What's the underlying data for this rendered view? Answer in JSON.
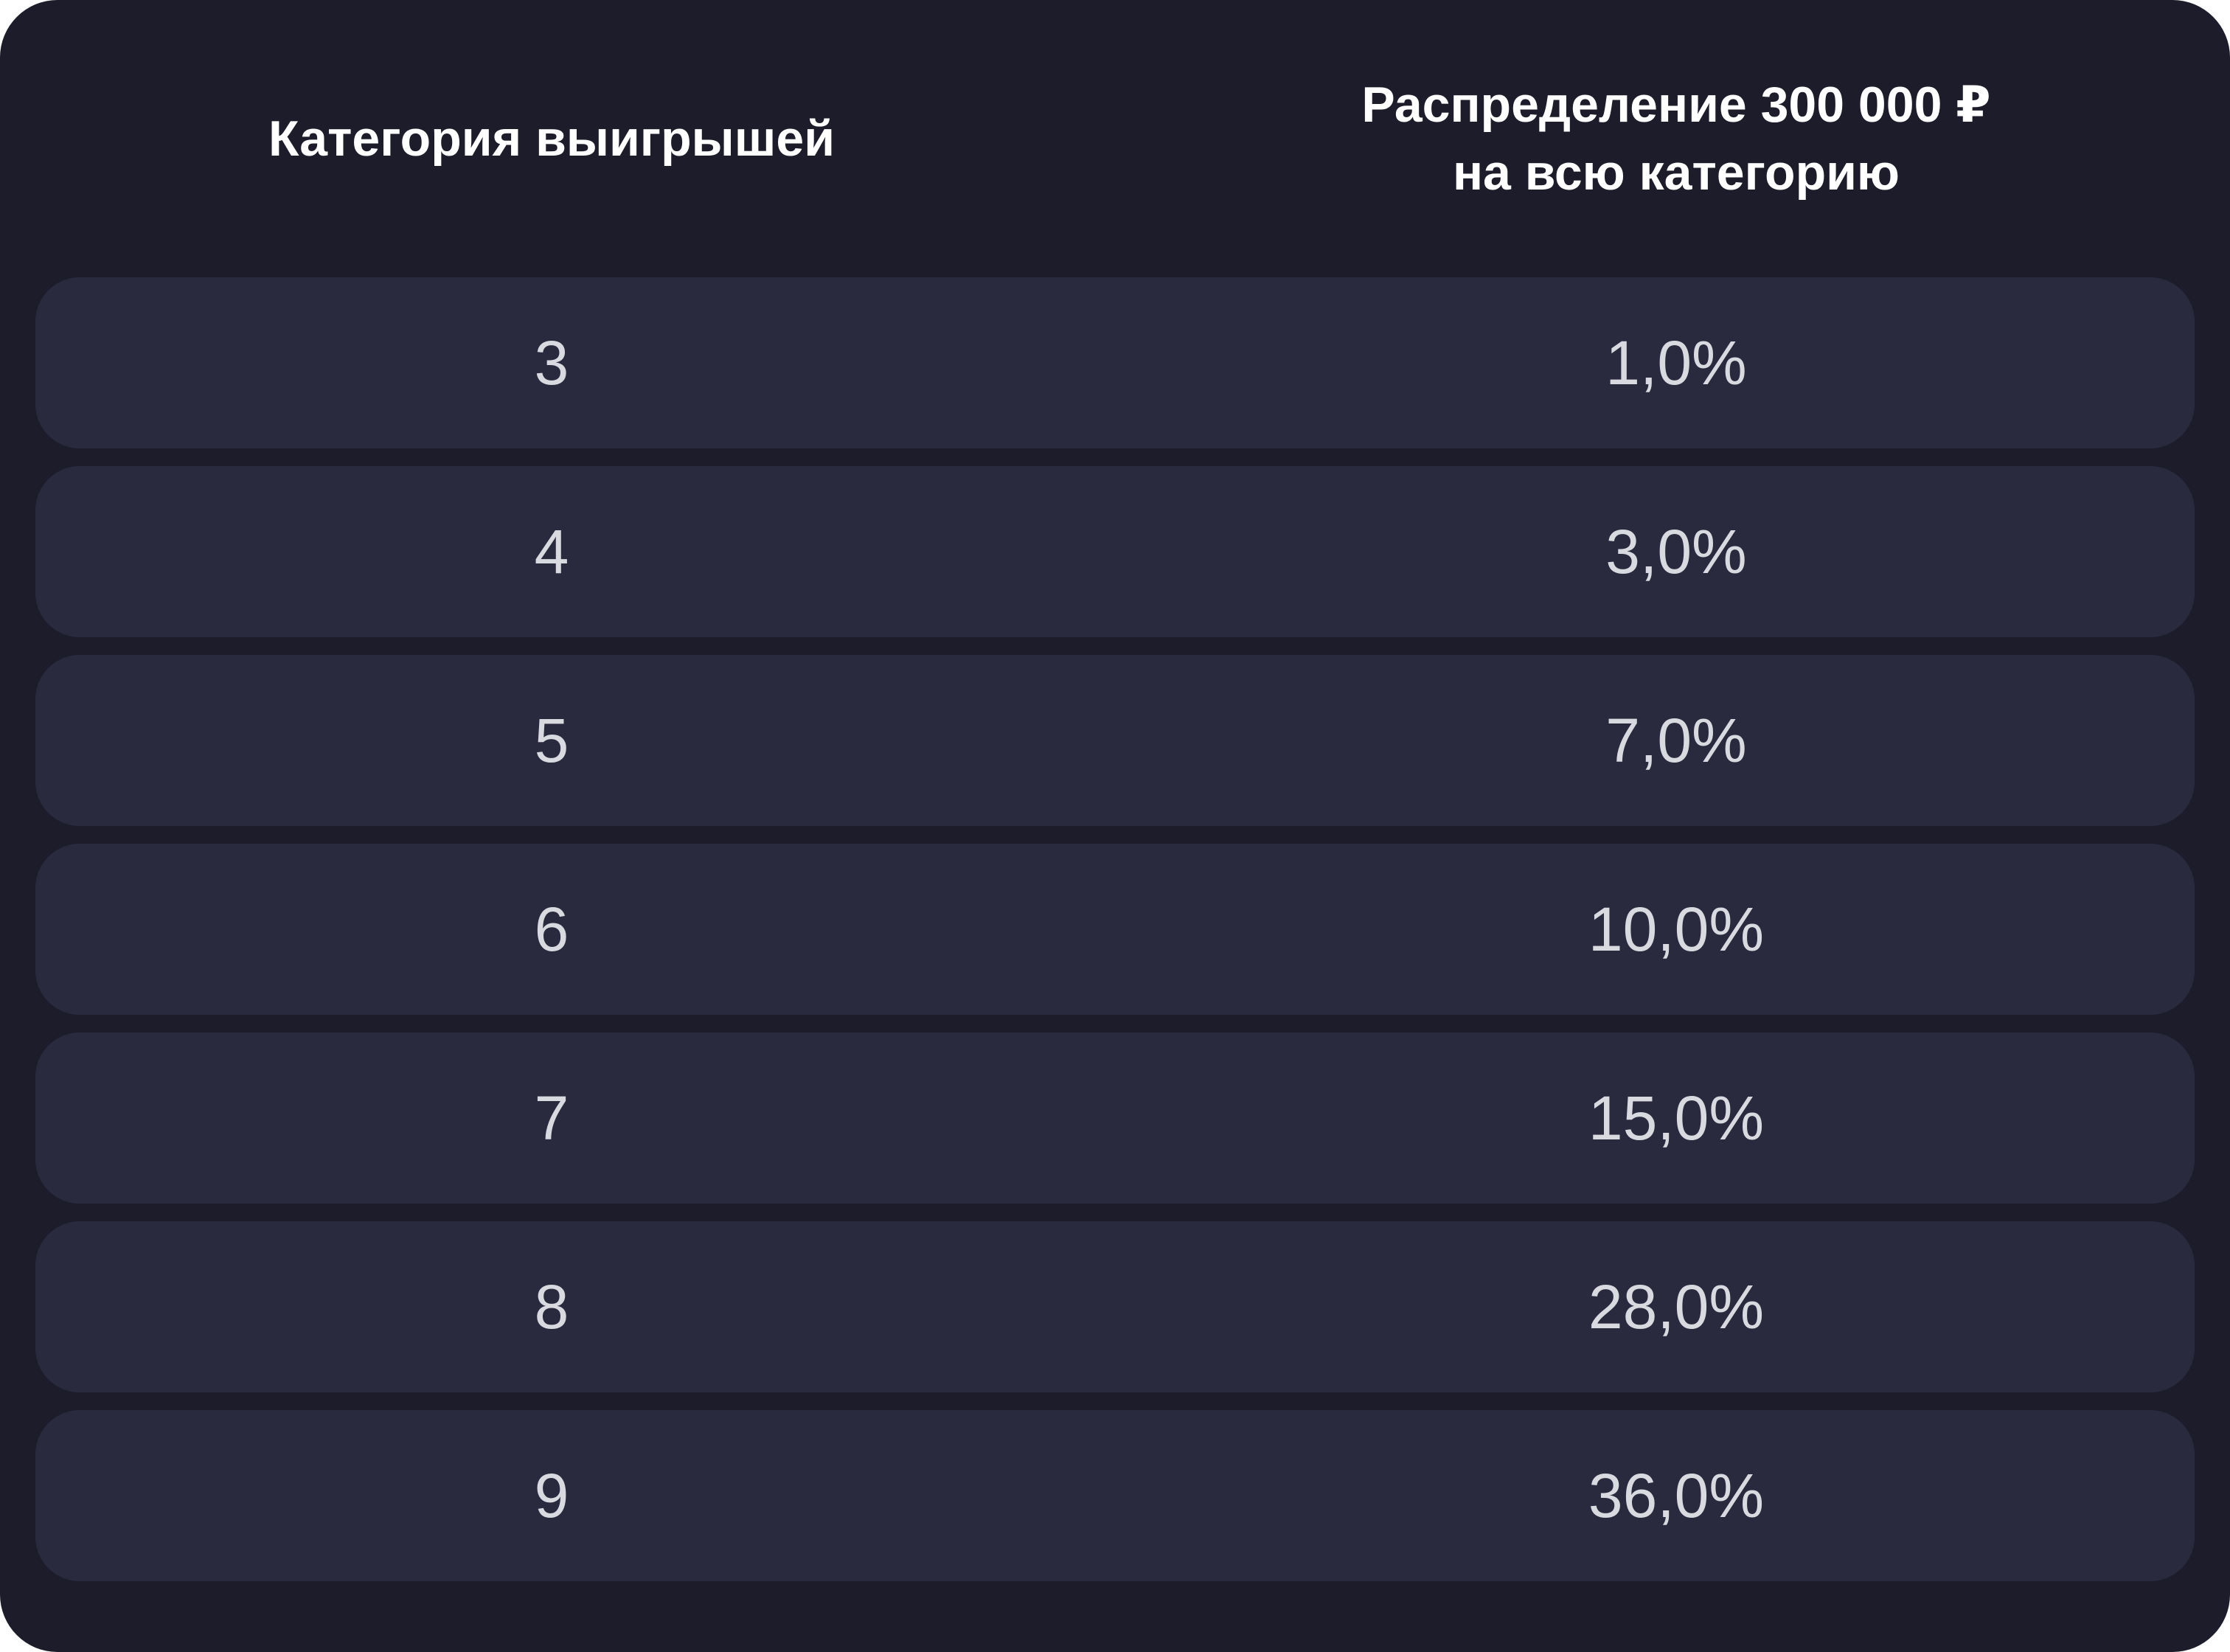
{
  "table": {
    "headers": {
      "category": "Категория выигрышей",
      "distribution_line1": "Распределение 300 000 ₽",
      "distribution_line2": "на всю категорию"
    },
    "rows": [
      {
        "category": "3",
        "share": "1,0%"
      },
      {
        "category": "4",
        "share": "3,0%"
      },
      {
        "category": "5",
        "share": "7,0%"
      },
      {
        "category": "6",
        "share": "10,0%"
      },
      {
        "category": "7",
        "share": "15,0%"
      },
      {
        "category": "8",
        "share": "28,0%"
      },
      {
        "category": "9",
        "share": "36,0%"
      }
    ]
  },
  "colors": {
    "background": "#1c1c2a",
    "row_background": "#2a2a3f",
    "header_text": "#ffffff",
    "cell_text": "#d9d9e0"
  }
}
